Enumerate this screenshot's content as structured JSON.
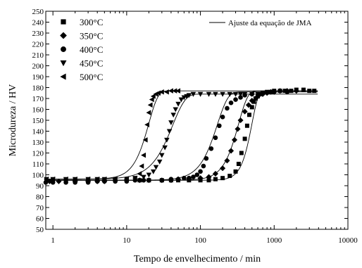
{
  "chart_data": {
    "type": "scatter",
    "title": "",
    "xlabel": "Tempo de envelhecimento / min",
    "ylabel": "Microdureza / HV",
    "xscale": "log",
    "xlim": [
      0.8,
      10000
    ],
    "ylim": [
      50,
      250
    ],
    "x_tick_labels": [
      "1",
      "10",
      "100",
      "1000",
      "10000"
    ],
    "x_tick_values": [
      1,
      10,
      100,
      1000,
      10000
    ],
    "y_tick_values": [
      50,
      60,
      70,
      80,
      90,
      100,
      110,
      120,
      130,
      140,
      150,
      160,
      170,
      180,
      190,
      200,
      210,
      220,
      230,
      240,
      250
    ],
    "grid": false,
    "legend_position": "top-left",
    "fit_legend": {
      "label": "Ajuste da equação de JMA",
      "position": "top-right"
    },
    "series": [
      {
        "name": "300°C",
        "marker": "square",
        "fit": {
          "y0": 95,
          "y_inf": 177,
          "tau": 500,
          "n": 5.0
        },
        "x": [
          0.75,
          1,
          1.5,
          2,
          3,
          4,
          5,
          7,
          10,
          15,
          20,
          30,
          40,
          50,
          70,
          100,
          130,
          160,
          200,
          250,
          300,
          330,
          360,
          400,
          430,
          460,
          500,
          530,
          560,
          600,
          650,
          700,
          800,
          900,
          1000,
          1200,
          1400,
          1700,
          2000,
          2500,
          3000,
          3500
        ],
        "values": [
          95,
          95,
          95,
          95,
          95,
          95,
          95,
          95,
          95,
          95,
          95,
          95,
          95,
          95,
          95,
          95,
          95,
          96,
          97,
          99,
          103,
          110,
          120,
          133,
          145,
          155,
          162,
          167,
          170,
          172,
          174,
          175,
          176,
          176,
          177,
          177,
          177,
          177,
          178,
          178,
          177,
          177
        ]
      },
      {
        "name": "350°C",
        "marker": "diamond",
        "fit": {
          "y0": 95,
          "y_inf": 177,
          "tau": 330,
          "n": 3.5
        },
        "x": [
          0.9,
          1.2,
          2,
          3,
          4,
          5,
          7,
          10,
          15,
          20,
          30,
          40,
          50,
          70,
          100,
          130,
          160,
          200,
          230,
          260,
          290,
          320,
          350,
          400,
          450,
          500,
          600,
          700,
          800,
          900,
          1000,
          1200,
          1500,
          2000
        ],
        "values": [
          94,
          94,
          94,
          94,
          94,
          94,
          95,
          95,
          95,
          95,
          95,
          95,
          96,
          96,
          97,
          98,
          101,
          106,
          113,
          122,
          132,
          142,
          150,
          158,
          164,
          168,
          172,
          174,
          175,
          176,
          176,
          177,
          177,
          177
        ]
      },
      {
        "name": "400°C",
        "marker": "circle",
        "fit": {
          "y0": 95,
          "y_inf": 176,
          "tau": 170,
          "n": 3.0
        },
        "x": [
          0.8,
          1,
          1.5,
          2,
          3,
          4,
          5,
          7,
          10,
          13,
          17,
          20,
          30,
          40,
          50,
          60,
          70,
          80,
          90,
          100,
          110,
          120,
          140,
          160,
          180,
          200,
          230,
          260,
          300,
          350,
          400,
          500,
          700,
          1000,
          1500
        ],
        "values": [
          93,
          93,
          93,
          93,
          93,
          94,
          94,
          94,
          94,
          95,
          95,
          95,
          95,
          96,
          96,
          97,
          97,
          98,
          100,
          103,
          108,
          115,
          124,
          134,
          145,
          153,
          161,
          166,
          169,
          171,
          173,
          174,
          175,
          176,
          176
        ]
      },
      {
        "name": "450°C",
        "marker": "triangle-down",
        "fit": {
          "y0": 96,
          "y_inf": 174,
          "tau": 42,
          "n": 2.5
        },
        "x": [
          0.75,
          1,
          1.5,
          2,
          3,
          4,
          5,
          7,
          10,
          13,
          17,
          20,
          23,
          25,
          28,
          30,
          33,
          35,
          38,
          40,
          43,
          46,
          50,
          55,
          60,
          65,
          70,
          80,
          100,
          130,
          160,
          200,
          250,
          300,
          350,
          400,
          500,
          600,
          700
        ],
        "values": [
          96,
          96,
          96,
          96,
          96,
          96,
          96,
          96,
          96,
          97,
          98,
          100,
          103,
          107,
          112,
          118,
          125,
          132,
          140,
          148,
          155,
          160,
          165,
          169,
          171,
          172,
          173,
          174,
          174,
          174,
          174,
          174,
          174,
          174,
          174,
          174,
          174,
          174,
          174
        ]
      },
      {
        "name": "500°C",
        "marker": "triangle-left",
        "fit": {
          "y0": 96,
          "y_inf": 177,
          "tau": 20,
          "n": 3.5
        },
        "x": [
          0.75,
          1,
          1.5,
          2,
          3,
          4,
          5,
          7,
          10,
          13,
          15,
          16,
          17,
          18,
          19,
          20,
          21,
          22,
          23,
          25,
          27,
          30,
          35,
          40,
          45,
          50
        ],
        "values": [
          96,
          96,
          96,
          96,
          96,
          96,
          96,
          96,
          96,
          97,
          101,
          108,
          118,
          132,
          146,
          157,
          164,
          169,
          172,
          174,
          175,
          176,
          176,
          177,
          177,
          177
        ]
      }
    ]
  }
}
